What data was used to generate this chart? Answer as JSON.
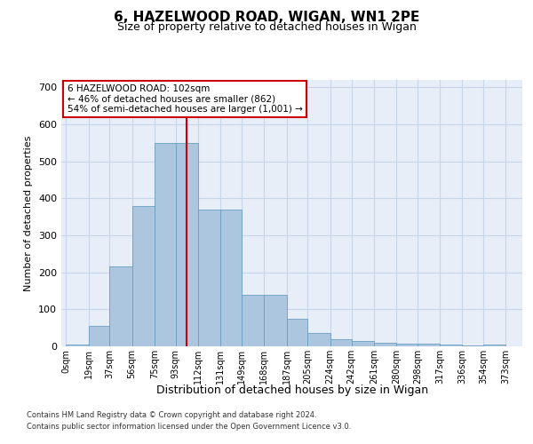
{
  "title_line1": "6, HAZELWOOD ROAD, WIGAN, WN1 2PE",
  "title_line2": "Size of property relative to detached houses in Wigan",
  "xlabel": "Distribution of detached houses by size in Wigan",
  "ylabel": "Number of detached properties",
  "footnote1": "Contains HM Land Registry data © Crown copyright and database right 2024.",
  "footnote2": "Contains public sector information licensed under the Open Government Licence v3.0.",
  "annotation_line1": "6 HAZELWOOD ROAD: 102sqm",
  "annotation_line2": "← 46% of detached houses are smaller (862)",
  "annotation_line3": "54% of semi-detached houses are larger (1,001) →",
  "property_size": 102,
  "bar_left_edges": [
    0,
    19,
    37,
    56,
    75,
    93,
    112,
    131,
    149,
    168,
    187,
    205,
    224,
    242,
    261,
    280,
    298,
    317,
    336,
    354
  ],
  "bar_heights": [
    5,
    55,
    215,
    380,
    550,
    550,
    370,
    370,
    140,
    140,
    75,
    35,
    20,
    15,
    10,
    8,
    7,
    5,
    3,
    5
  ],
  "bar_color": "#adc6e0",
  "bar_edgecolor": "#6a9ec0",
  "vline_color": "#cc0000",
  "vline_x": 102,
  "grid_color": "#c8d4e8",
  "background_color": "#e8eef8",
  "box_edgecolor": "#cc0000",
  "ylim": [
    0,
    720
  ],
  "yticks": [
    0,
    100,
    200,
    300,
    400,
    500,
    600,
    700
  ],
  "tick_labels": [
    "0sqm",
    "19sqm",
    "37sqm",
    "56sqm",
    "75sqm",
    "93sqm",
    "112sqm",
    "131sqm",
    "149sqm",
    "168sqm",
    "187sqm",
    "205sqm",
    "224sqm",
    "242sqm",
    "261sqm",
    "280sqm",
    "298sqm",
    "317sqm",
    "336sqm",
    "354sqm",
    "373sqm"
  ],
  "xlim_left": -4,
  "xlim_right": 387
}
